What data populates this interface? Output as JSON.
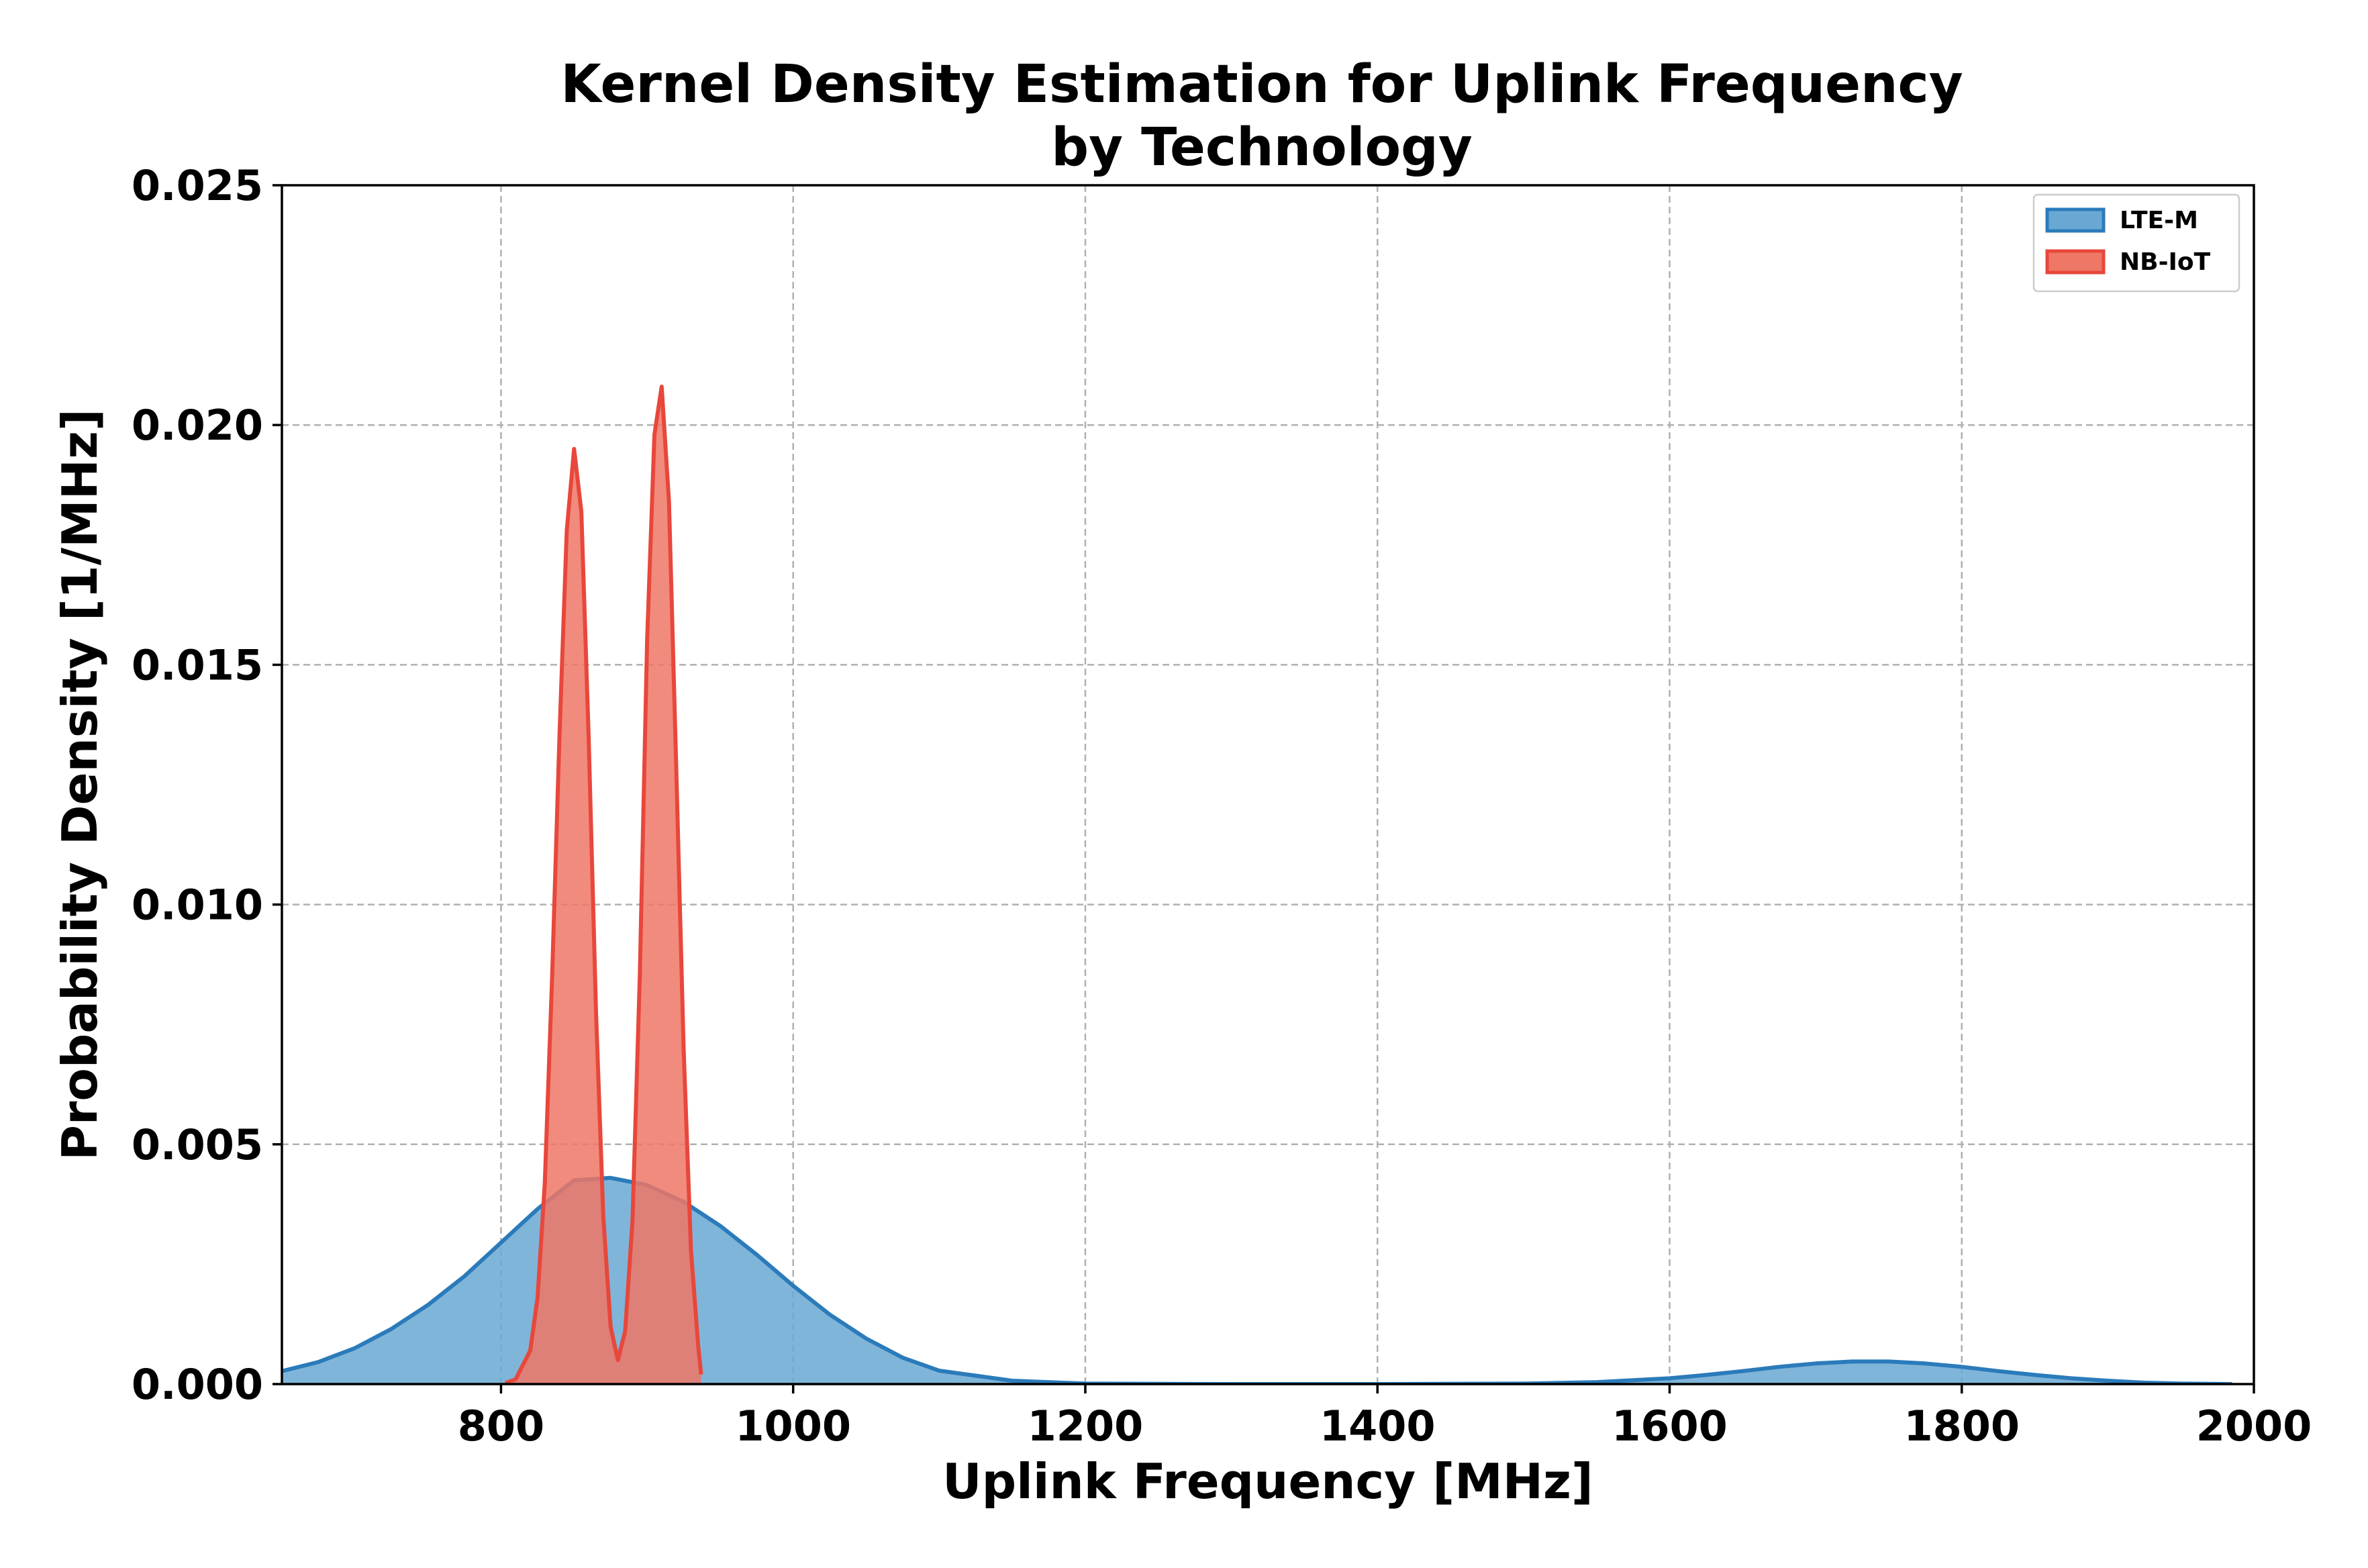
{
  "chart_data": {
    "type": "area",
    "title_line1": "Kernel Density Estimation for Uplink Frequency",
    "title_line2": "by Technology",
    "xlabel": "Uplink Frequency [MHz]",
    "ylabel": "Probability Density [1/MHz]",
    "xlim": [
      650,
      2000
    ],
    "ylim": [
      0,
      0.025
    ],
    "xticks": [
      800,
      1000,
      1200,
      1400,
      1600,
      1800,
      2000
    ],
    "xtick_labels": [
      "800",
      "1000",
      "1200",
      "1400",
      "1600",
      "1800",
      "2000"
    ],
    "yticks": [
      0.0,
      0.005,
      0.01,
      0.015,
      0.02,
      0.025
    ],
    "ytick_labels": [
      "0.000",
      "0.005",
      "0.010",
      "0.015",
      "0.020",
      "0.025"
    ],
    "grid": true,
    "legend_position": "top-right",
    "series": [
      {
        "name": "LTE-M",
        "color": "#2b7bba",
        "fill": "#6aa8d4",
        "x": [
          650,
          675,
          700,
          725,
          750,
          775,
          800,
          825,
          850,
          875,
          900,
          925,
          950,
          975,
          1000,
          1025,
          1050,
          1075,
          1100,
          1150,
          1200,
          1300,
          1400,
          1500,
          1550,
          1600,
          1625,
          1650,
          1675,
          1700,
          1725,
          1750,
          1775,
          1800,
          1825,
          1850,
          1875,
          1900,
          1925,
          1950,
          1985
        ],
        "y": [
          0.00027,
          0.00046,
          0.00075,
          0.00115,
          0.00165,
          0.00225,
          0.00295,
          0.00365,
          0.00425,
          0.0043,
          0.00415,
          0.0038,
          0.0033,
          0.0027,
          0.00205,
          0.00145,
          0.00095,
          0.00055,
          0.00028,
          7e-05,
          1e-05,
          0.0,
          0.0,
          1e-05,
          4e-05,
          0.00012,
          0.00019,
          0.00027,
          0.00036,
          0.00043,
          0.00047,
          0.00047,
          0.00043,
          0.00036,
          0.00027,
          0.00019,
          0.00012,
          7e-05,
          3e-05,
          1e-05,
          0.0
        ]
      },
      {
        "name": "NB-IoT",
        "color": "#e8473b",
        "fill": "#ee7766",
        "x": [
          803,
          810,
          820,
          825,
          830,
          835,
          840,
          845,
          850,
          855,
          860,
          865,
          870,
          875,
          880,
          885,
          890,
          895,
          900,
          905,
          910,
          915,
          920,
          925,
          930,
          935,
          937
        ],
        "y": [
          2e-05,
          0.0001,
          0.0007,
          0.0018,
          0.0042,
          0.0085,
          0.0135,
          0.0178,
          0.0195,
          0.0182,
          0.0135,
          0.0078,
          0.0035,
          0.0012,
          0.0005,
          0.0011,
          0.0034,
          0.0085,
          0.0155,
          0.0198,
          0.0208,
          0.0184,
          0.0128,
          0.007,
          0.0028,
          0.0008,
          0.0002
        ]
      }
    ]
  }
}
